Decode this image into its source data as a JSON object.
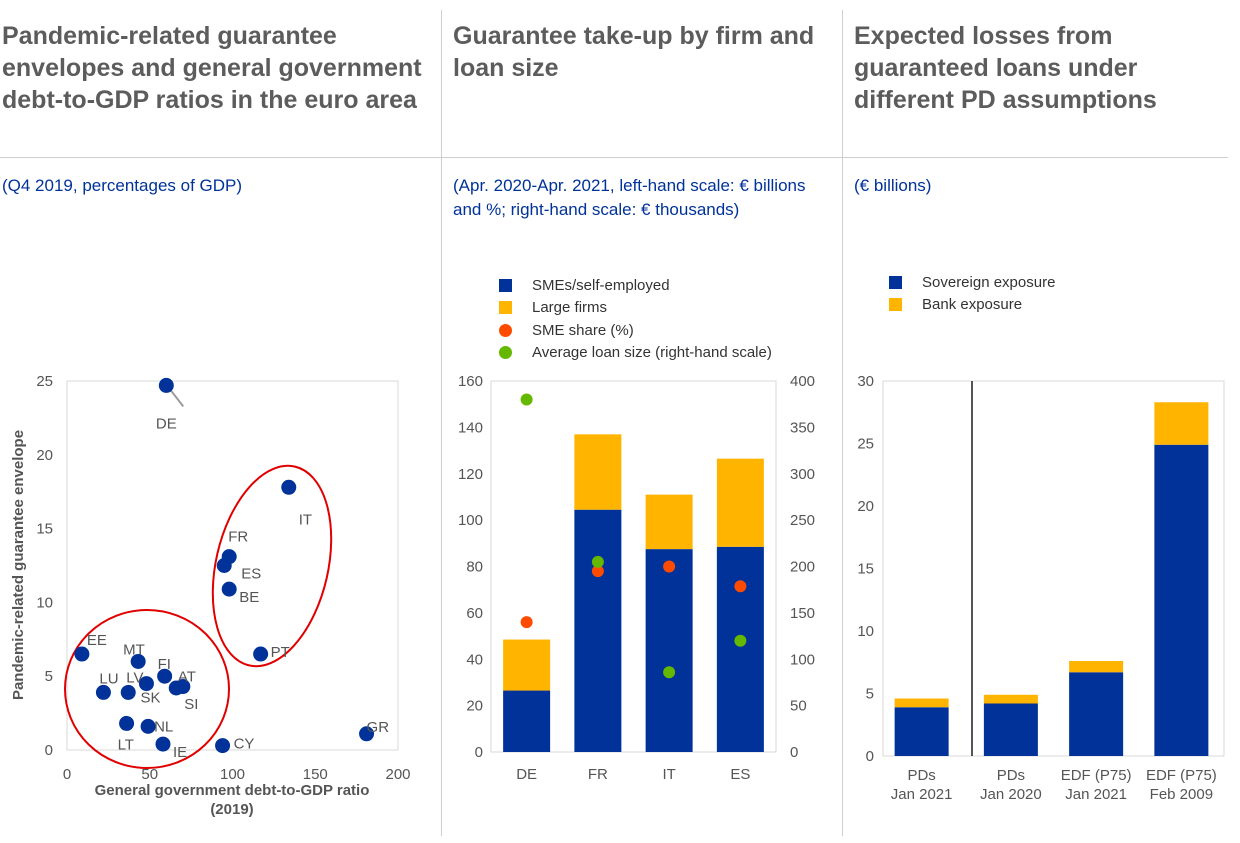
{
  "colors": {
    "sme": "#003299",
    "large": "#ffb400",
    "sme_share": "#ff4b00",
    "avg_loan": "#65b800",
    "circle": "#e00000",
    "title": "#5c5c5c",
    "subtitle": "#003299"
  },
  "panels": [
    {
      "title": "Pandemic-related guarantee envelopes and general government debt-to-GDP ratios in the euro area",
      "subtitle": "(Q4 2019, percentages of GDP)"
    },
    {
      "title": "Guarantee take-up by firm and loan size",
      "subtitle": "(Apr. 2020-Apr. 2021, left-hand scale: € billions and %; right-hand scale: € thousands)"
    },
    {
      "title": "Expected losses from guaranteed loans under different PD assumptions",
      "subtitle": "(€ billions)"
    }
  ],
  "chart_data": [
    {
      "type": "scatter",
      "xlabel": "General government debt-to-GDP ratio (2019)",
      "ylabel": "Pandemic-related guarantee envelope",
      "xlim": [
        0,
        200
      ],
      "ylim": [
        0,
        25
      ],
      "xticks": [
        "0",
        "50",
        "100",
        "150",
        "200"
      ],
      "yticks": [
        "0",
        "5",
        "10",
        "15",
        "20",
        "25"
      ],
      "points": [
        {
          "label": "DE",
          "x": 60,
          "y": 24.7
        },
        {
          "label": "IT",
          "x": 134,
          "y": 17.8
        },
        {
          "label": "FR",
          "x": 98,
          "y": 13.1
        },
        {
          "label": "ES",
          "x": 95,
          "y": 12.5
        },
        {
          "label": "BE",
          "x": 98,
          "y": 10.9
        },
        {
          "label": "PT",
          "x": 117,
          "y": 6.5
        },
        {
          "label": "EE",
          "x": 9,
          "y": 6.5
        },
        {
          "label": "MT",
          "x": 43,
          "y": 6.0
        },
        {
          "label": "FI",
          "x": 59,
          "y": 5.0
        },
        {
          "label": "AT",
          "x": 70,
          "y": 4.3
        },
        {
          "label": "SI",
          "x": 66,
          "y": 4.2
        },
        {
          "label": "SK",
          "x": 48,
          "y": 4.5
        },
        {
          "label": "LU",
          "x": 22,
          "y": 3.9
        },
        {
          "label": "LV",
          "x": 37,
          "y": 3.9
        },
        {
          "label": "NL",
          "x": 49,
          "y": 1.6
        },
        {
          "label": "LT",
          "x": 36,
          "y": 1.8
        },
        {
          "label": "IE",
          "x": 58,
          "y": 0.4
        },
        {
          "label": "CY",
          "x": 94,
          "y": 0.3
        },
        {
          "label": "GR",
          "x": 181,
          "y": 1.1
        }
      ]
    },
    {
      "type": "bar",
      "stacked": true,
      "categories": [
        "DE",
        "FR",
        "IT",
        "ES"
      ],
      "ylim": [
        0,
        160
      ],
      "y2lim": [
        0,
        400
      ],
      "yticks": [
        "0",
        "20",
        "40",
        "60",
        "80",
        "100",
        "120",
        "140",
        "160"
      ],
      "y2ticks": [
        "0",
        "50",
        "100",
        "150",
        "200",
        "250",
        "300",
        "350",
        "400"
      ],
      "series": [
        {
          "name": "SMEs/self-employed",
          "kind": "bar",
          "axis": "left",
          "values": [
            26.5,
            104.5,
            87.5,
            88.5
          ]
        },
        {
          "name": "Large firms",
          "kind": "bar",
          "axis": "left",
          "values": [
            22,
            32.5,
            23.5,
            38
          ]
        },
        {
          "name": "SME share (%)",
          "kind": "dot",
          "axis": "left",
          "values": [
            56,
            78,
            80,
            71.5
          ]
        },
        {
          "name": "Average loan size (right-hand scale)",
          "kind": "dot",
          "axis": "right",
          "values": [
            380,
            205,
            86,
            120
          ]
        }
      ]
    },
    {
      "type": "bar",
      "stacked": true,
      "categories": [
        [
          "PDs",
          "Jan 2021"
        ],
        [
          "PDs",
          "Jan 2020"
        ],
        [
          "EDF (P75)",
          "Jan 2021"
        ],
        [
          "EDF (P75)",
          "Feb 2009"
        ]
      ],
      "ylim": [
        0,
        30
      ],
      "yticks": [
        "0",
        "5",
        "10",
        "15",
        "20",
        "25",
        "30"
      ],
      "series": [
        {
          "name": "Sovereign exposure",
          "values": [
            3.9,
            4.2,
            6.7,
            24.9
          ]
        },
        {
          "name": "Bank exposure",
          "values": [
            0.7,
            0.7,
            0.9,
            3.4
          ]
        }
      ]
    }
  ]
}
